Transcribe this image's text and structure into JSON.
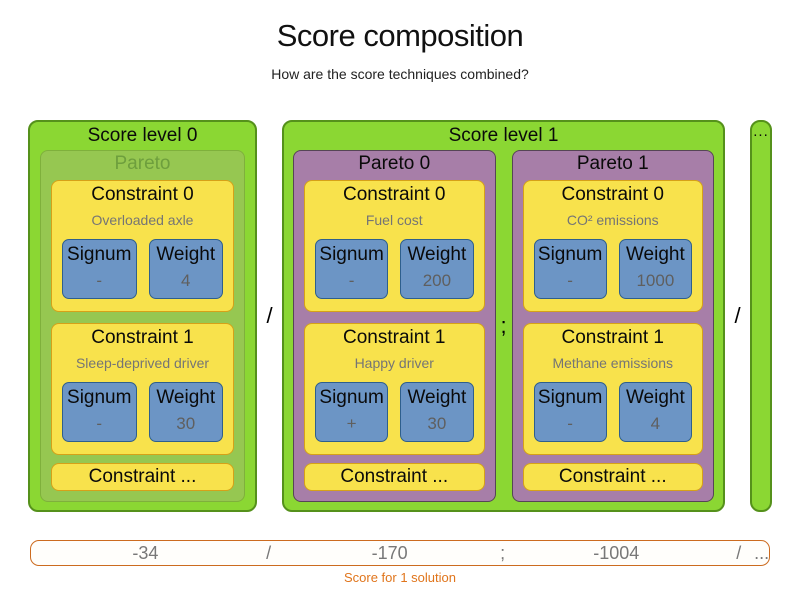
{
  "header": {
    "title": "Score composition",
    "subtitle": "How are the score techniques combined?"
  },
  "separators": {
    "after_level0": "/",
    "between_paretos": ";",
    "after_level1": "/",
    "more_levels": "..."
  },
  "levels": [
    {
      "label": "Score level 0",
      "paretos": [
        {
          "label": "Pareto",
          "constraints": [
            {
              "title": "Constraint 0",
              "description": "Overloaded axle",
              "signum_label": "Signum",
              "signum_value": "-",
              "weight_label": "Weight",
              "weight_value": "4"
            },
            {
              "title": "Constraint 1",
              "description": "Sleep-deprived driver",
              "signum_label": "Signum",
              "signum_value": "-",
              "weight_label": "Weight",
              "weight_value": "30"
            }
          ],
          "more_label": "Constraint ..."
        }
      ]
    },
    {
      "label": "Score level 1",
      "paretos": [
        {
          "label": "Pareto 0",
          "constraints": [
            {
              "title": "Constraint 0",
              "description": "Fuel cost",
              "signum_label": "Signum",
              "signum_value": "-",
              "weight_label": "Weight",
              "weight_value": "200"
            },
            {
              "title": "Constraint 1",
              "description": "Happy driver",
              "signum_label": "Signum",
              "signum_value": "+",
              "weight_label": "Weight",
              "weight_value": "30"
            }
          ],
          "more_label": "Constraint ..."
        },
        {
          "label": "Pareto 1",
          "constraints": [
            {
              "title": "Constraint 0",
              "description": "CO² emissions",
              "signum_label": "Signum",
              "signum_value": "-",
              "weight_label": "Weight",
              "weight_value": "1000"
            },
            {
              "title": "Constraint 1",
              "description": "Methane emissions",
              "signum_label": "Signum",
              "signum_value": "-",
              "weight_label": "Weight",
              "weight_value": "4"
            }
          ],
          "more_label": "Constraint ..."
        }
      ]
    }
  ],
  "score_bar": {
    "items": [
      "-34",
      "/",
      "-170",
      ";",
      "-1004",
      "/",
      "..."
    ],
    "caption": "Score for 1 solution"
  },
  "colors": {
    "level_green_fill": "#8bd733",
    "level_green_border": "#55911b",
    "pareto_green_fill": "#96c751",
    "pareto_purple_fill": "#a77ea8",
    "constraint_yellow_fill": "#f8e24c",
    "constraint_yellow_border": "#d6a118",
    "signum_blue_fill": "#6c95c5",
    "signum_blue_border": "#2e5f8d",
    "score_bar_border_orange": "#cc6b1f",
    "score_caption_orange": "#e0751c"
  }
}
